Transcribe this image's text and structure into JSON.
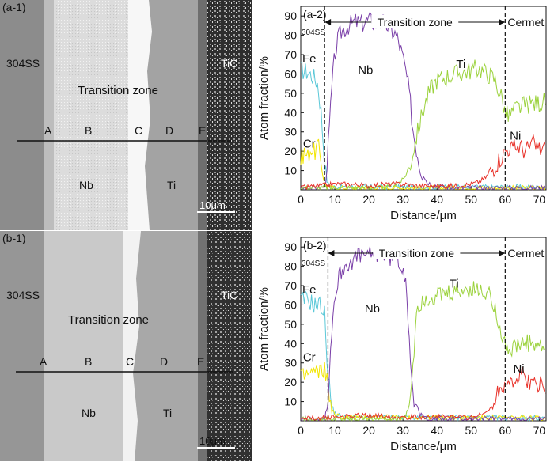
{
  "micrographs": [
    {
      "panel_label": "(a-1)",
      "material_left": "304SS",
      "material_right": "TiC",
      "zone_label": "Transition zone",
      "points": [
        "A",
        "B",
        "C",
        "D",
        "E"
      ],
      "phase_left": "Nb",
      "phase_right": "Ti",
      "scale_bar": "10μm"
    },
    {
      "panel_label": "(b-1)",
      "material_left": "304SS",
      "material_right": "TiC",
      "zone_label": "Transition zone",
      "points": [
        "A",
        "B",
        "C",
        "D",
        "E"
      ],
      "phase_left": "Nb",
      "phase_right": "Ti",
      "scale_bar": "10μm"
    }
  ],
  "chart_data": [
    {
      "type": "line",
      "panel_label": "(a-2)",
      "xlabel": "Distance/μm",
      "ylabel": "Atom fraction/%",
      "xlim": [
        0,
        72
      ],
      "ylim": [
        0,
        95
      ],
      "xticks": [
        0,
        10,
        20,
        30,
        40,
        50,
        60,
        70
      ],
      "yticks": [
        10,
        20,
        30,
        40,
        50,
        60,
        70,
        80,
        90
      ],
      "boundaries": [
        7,
        60
      ],
      "region_labels": {
        "left": "304SS",
        "middle": "Transition zone",
        "right": "Cermet"
      },
      "series": [
        {
          "name": "Fe",
          "color": "#5bc8d8",
          "x": [
            0,
            2,
            4,
            5,
            6,
            7,
            7.5,
            8,
            9,
            10,
            72
          ],
          "y": [
            62,
            61,
            58,
            55,
            40,
            15,
            6,
            3,
            2,
            1.5,
            1.5
          ]
        },
        {
          "name": "Cr",
          "color": "#f2e600",
          "x": [
            0,
            1,
            2,
            3,
            4,
            5,
            6,
            6.5,
            7,
            8,
            9,
            72
          ],
          "y": [
            15,
            20,
            17,
            22,
            19,
            23,
            16,
            8,
            3,
            1.5,
            1,
            1
          ]
        },
        {
          "name": "Nb",
          "color": "#7a3fa8",
          "x": [
            0,
            6,
            7,
            8,
            9,
            10,
            11,
            12,
            14,
            16,
            18,
            20,
            22,
            24,
            26,
            28,
            29,
            30,
            31,
            32,
            33,
            35,
            37,
            40,
            45,
            50,
            55,
            60,
            65,
            72
          ],
          "y": [
            1,
            1,
            2,
            20,
            50,
            70,
            78,
            82,
            85,
            87,
            86,
            88,
            86,
            87,
            84,
            80,
            75,
            68,
            60,
            48,
            30,
            12,
            4,
            2,
            1,
            1,
            1,
            1,
            1,
            1
          ]
        },
        {
          "name": "Ti",
          "color": "#9bd23c",
          "x": [
            0,
            25,
            30,
            32,
            34,
            36,
            38,
            40,
            42,
            45,
            48,
            50,
            52,
            55,
            57,
            58,
            59,
            60,
            61,
            63,
            66,
            70,
            72
          ],
          "y": [
            1,
            1,
            5,
            12,
            28,
            42,
            52,
            57,
            58,
            60,
            61,
            62,
            63,
            60,
            57,
            52,
            48,
            40,
            38,
            42,
            44,
            45,
            46
          ]
        },
        {
          "name": "Ni",
          "color": "#e8322a",
          "x": [
            0,
            5,
            10,
            15,
            20,
            25,
            30,
            35,
            40,
            45,
            50,
            52,
            54,
            56,
            58,
            60,
            61,
            62,
            64,
            66,
            68,
            70,
            72
          ],
          "y": [
            1,
            2,
            3,
            3,
            2,
            3,
            3,
            2,
            2,
            2,
            3,
            4,
            6,
            10,
            15,
            20,
            22,
            21,
            23,
            20,
            24,
            21,
            22
          ]
        }
      ],
      "series_labels": [
        {
          "text": "Fe",
          "x": 2.5,
          "y": 66
        },
        {
          "text": "Cr",
          "x": 2.5,
          "y": 22
        },
        {
          "text": "Nb",
          "x": 19,
          "y": 60
        },
        {
          "text": "Ti",
          "x": 47,
          "y": 63
        },
        {
          "text": "Ni",
          "x": 63,
          "y": 26
        }
      ]
    },
    {
      "type": "line",
      "panel_label": "(b-2)",
      "xlabel": "Distance/μm",
      "ylabel": "Atom fraction/%",
      "xlim": [
        0,
        72
      ],
      "ylim": [
        0,
        95
      ],
      "xticks": [
        0,
        10,
        20,
        30,
        40,
        50,
        60,
        70
      ],
      "yticks": [
        10,
        20,
        30,
        40,
        50,
        60,
        70,
        80,
        90
      ],
      "boundaries": [
        8,
        60
      ],
      "region_labels": {
        "left": "304SS",
        "middle": "Transition zone",
        "right": "Cermet"
      },
      "series": [
        {
          "name": "Fe",
          "color": "#5bc8d8",
          "x": [
            0,
            2,
            4,
            6,
            7,
            8,
            9,
            10,
            12,
            72
          ],
          "y": [
            62,
            63,
            60,
            60,
            55,
            25,
            8,
            4,
            2,
            1.5
          ]
        },
        {
          "name": "Cr",
          "color": "#f2e600",
          "x": [
            0,
            2,
            4,
            6,
            7,
            8,
            9,
            10,
            12,
            72
          ],
          "y": [
            22,
            24,
            25,
            25,
            28,
            18,
            6,
            3,
            2,
            1.5
          ]
        },
        {
          "name": "Nb",
          "color": "#7a3fa8",
          "x": [
            0,
            7,
            8,
            9,
            10,
            11,
            12,
            14,
            16,
            18,
            20,
            22,
            24,
            26,
            28,
            30,
            31,
            32,
            33,
            35,
            38,
            45,
            55,
            65,
            72
          ],
          "y": [
            1,
            1,
            10,
            45,
            65,
            73,
            78,
            82,
            84,
            86,
            85,
            87,
            86,
            85,
            84,
            80,
            70,
            40,
            12,
            3,
            1,
            1,
            1,
            1,
            1
          ]
        },
        {
          "name": "Ti",
          "color": "#9bd23c",
          "x": [
            0,
            30,
            31,
            32,
            33,
            34,
            36,
            40,
            45,
            50,
            55,
            57,
            58,
            59,
            60,
            61,
            63,
            66,
            70,
            72
          ],
          "y": [
            1,
            1,
            3,
            10,
            30,
            58,
            63,
            64,
            66,
            68,
            66,
            60,
            52,
            45,
            40,
            36,
            38,
            40,
            38,
            36
          ]
        },
        {
          "name": "Ni",
          "color": "#e8322a",
          "x": [
            0,
            10,
            20,
            30,
            40,
            50,
            53,
            55,
            57,
            59,
            60,
            61,
            63,
            65,
            67,
            69,
            70,
            72
          ],
          "y": [
            1,
            2,
            3,
            2,
            2,
            2,
            3,
            5,
            12,
            18,
            20,
            22,
            20,
            24,
            20,
            18,
            20,
            18
          ]
        }
      ],
      "series_labels": [
        {
          "text": "Fe",
          "x": 2.5,
          "y": 66
        },
        {
          "text": "Cr",
          "x": 2.5,
          "y": 31
        },
        {
          "text": "Nb",
          "x": 21,
          "y": 56
        },
        {
          "text": "Ti",
          "x": 45,
          "y": 69
        },
        {
          "text": "Ni",
          "x": 64,
          "y": 25
        }
      ]
    }
  ]
}
